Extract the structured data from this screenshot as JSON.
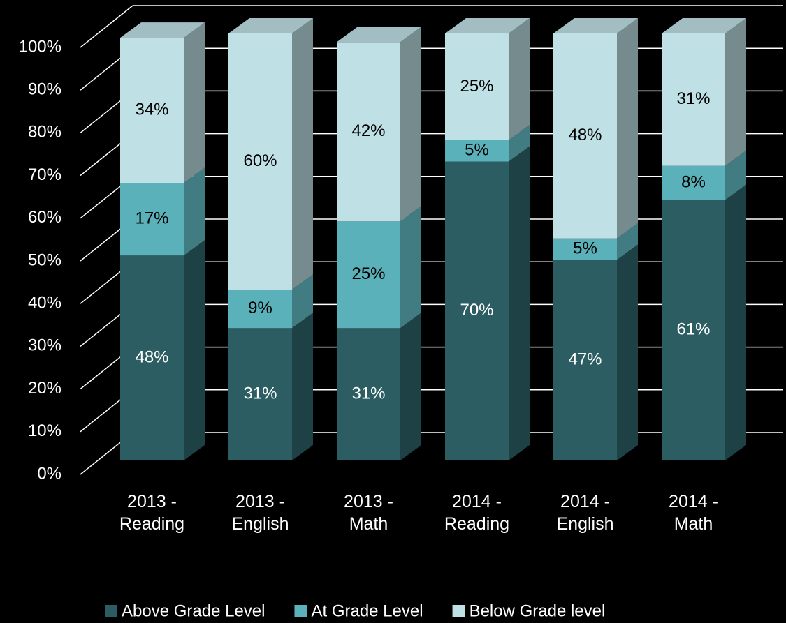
{
  "chart_data": {
    "type": "bar",
    "stacked": true,
    "threed": true,
    "categories": [
      "2013 - Reading",
      "2013 - English",
      "2013 - Math",
      "2014 - Reading",
      "2014 - English",
      "2014 - Math"
    ],
    "series": [
      {
        "name": "Above Grade Level",
        "color": "#2b5d63",
        "values": [
          48,
          31,
          31,
          70,
          47,
          61
        ],
        "value_labels": [
          "48%",
          "31%",
          "31%",
          "70%",
          "47%",
          "61%"
        ]
      },
      {
        "name": "At Grade Level",
        "color": "#5bb1b9",
        "values": [
          17,
          9,
          25,
          5,
          5,
          8
        ],
        "value_labels": [
          "17%",
          "9%",
          "25%",
          "5%",
          "5%",
          "8%"
        ]
      },
      {
        "name": "Below Grade level",
        "color": "#bfe0e4",
        "values": [
          34,
          60,
          42,
          25,
          48,
          31
        ],
        "value_labels": [
          "34%",
          "60%",
          "42%",
          "25%",
          "48%",
          "31%"
        ]
      }
    ],
    "ylim": [
      0,
      100
    ],
    "yticks": [
      {
        "value": 0,
        "label": "0%"
      },
      {
        "value": 10,
        "label": "10%"
      },
      {
        "value": 20,
        "label": "20%"
      },
      {
        "value": 30,
        "label": "30%"
      },
      {
        "value": 40,
        "label": "40%"
      },
      {
        "value": 50,
        "label": "50%"
      },
      {
        "value": 60,
        "label": "60%"
      },
      {
        "value": 70,
        "label": "70%"
      },
      {
        "value": 80,
        "label": "80%"
      },
      {
        "value": 90,
        "label": "90%"
      },
      {
        "value": 100,
        "label": "100%"
      }
    ],
    "grid": true,
    "legend": "bottom"
  }
}
